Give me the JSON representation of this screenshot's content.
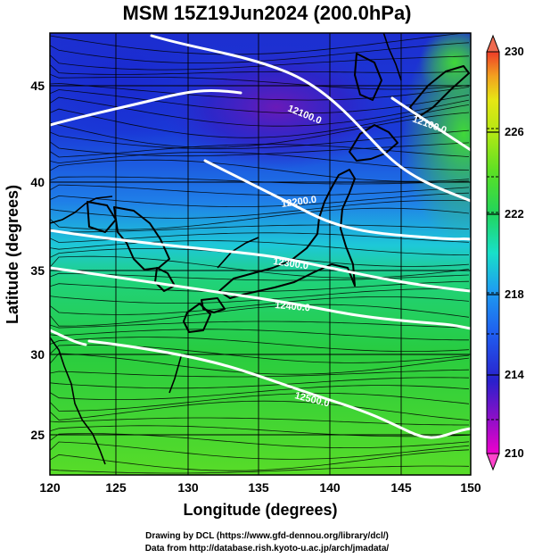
{
  "title": "MSM 15Z19Jun2024 (200.0hPa)",
  "axes": {
    "xlabel": "Longitude (degrees)",
    "ylabel": "Latitude  (degrees)",
    "xticks": [
      "120",
      "125",
      "130",
      "135",
      "140",
      "145",
      "150"
    ],
    "yticks": [
      "25",
      "30",
      "35",
      "40",
      "45"
    ]
  },
  "colorbar": {
    "ticks": [
      "210",
      "214",
      "218",
      "222",
      "226",
      "230"
    ],
    "colors": [
      "#ee00cc",
      "#8a10c8",
      "#2a20cc",
      "#1f5ef0",
      "#1ea0f0",
      "#18e0c8",
      "#22d45a",
      "#5ae025",
      "#b4e814",
      "#e6e614",
      "#f2a020",
      "#ee3c28"
    ]
  },
  "contour_labels": [
    "12100.0",
    "12100.0",
    "12200.0",
    "12300.0",
    "12400.0",
    "12500.0"
  ],
  "credits": {
    "line1": "Drawing by DCL (https://www.gfd-dennou.org/library/dcl/)",
    "line2": "Data from http://database.rish.kyoto-u.ac.jp/arch/jmadata/"
  }
}
